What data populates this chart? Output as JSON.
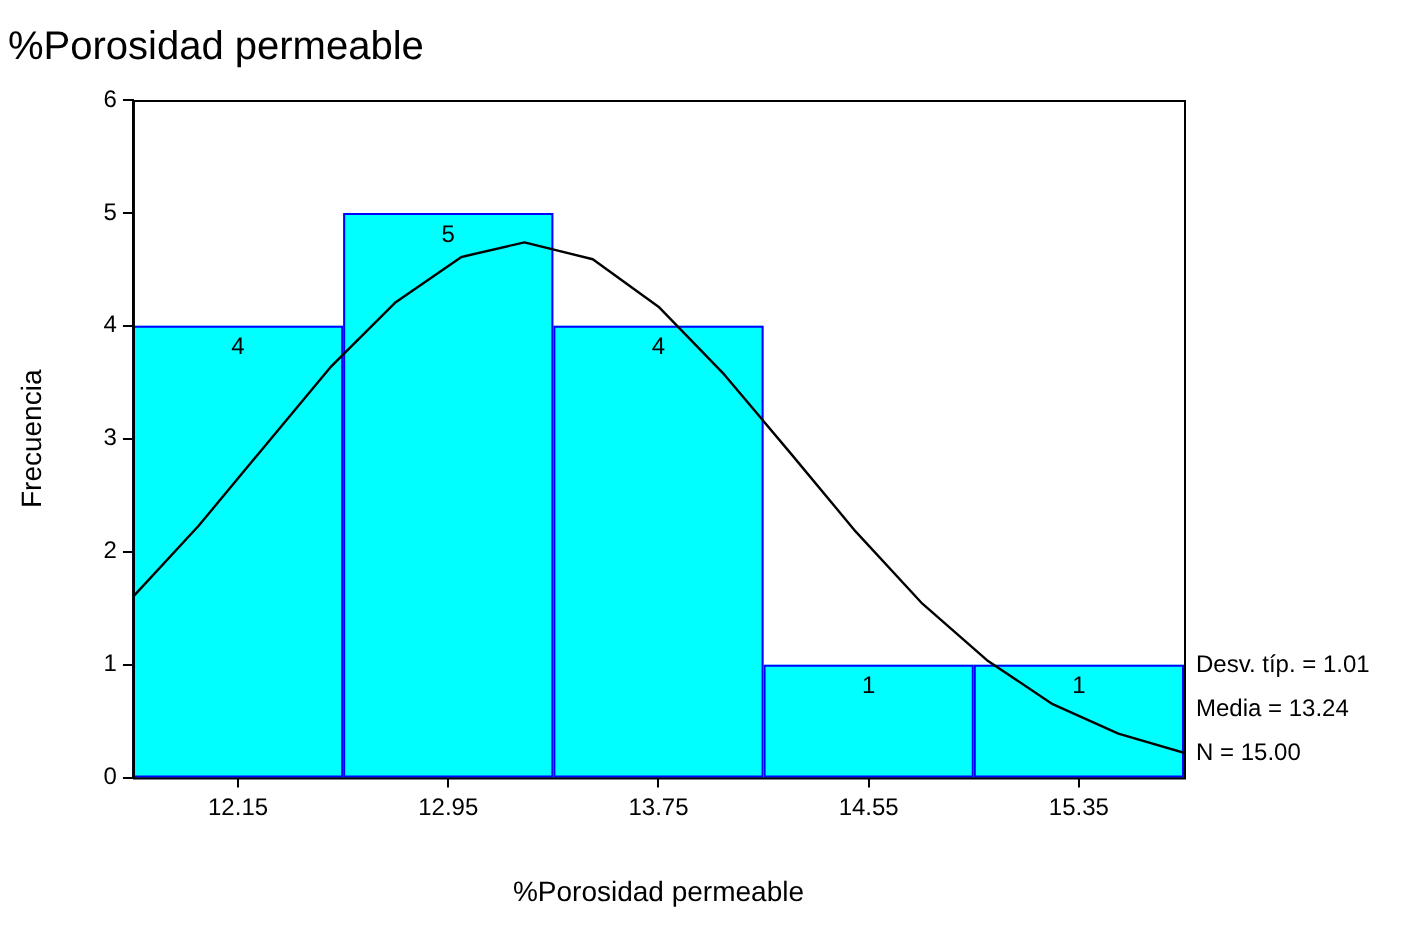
{
  "chart_data": {
    "type": "histogram",
    "title": "%Porosidad permeable",
    "xlabel": "%Porosidad permeable",
    "ylabel": "Frecuencia",
    "bins": [
      11.75,
      12.55,
      13.35,
      14.15,
      14.95,
      15.75
    ],
    "series": [
      {
        "type": "histogram",
        "color": "#00ffff",
        "values": [
          4,
          5,
          4,
          1,
          1
        ],
        "value_labels": [
          "4",
          "5",
          "4",
          "1",
          "1"
        ]
      },
      {
        "type": "line",
        "color": "#000000",
        "x": [
          11.75,
          12.0,
          12.25,
          12.5,
          12.75,
          13.0,
          13.24,
          13.5,
          13.75,
          14.0,
          14.25,
          14.5,
          14.75,
          15.0,
          15.25,
          15.5,
          15.75
        ],
        "values": [
          1.6,
          2.23,
          2.93,
          3.63,
          4.21,
          4.61,
          4.74,
          4.59,
          4.17,
          3.57,
          2.88,
          2.18,
          1.55,
          1.04,
          0.65,
          0.39,
          0.22
        ]
      }
    ],
    "xlim": [
      11.75,
      15.75
    ],
    "xticks": [
      12.15,
      12.95,
      13.75,
      14.55,
      15.35
    ],
    "ylim": [
      0,
      6
    ],
    "yticks": [
      0,
      1,
      2,
      3,
      4,
      5,
      6
    ],
    "grid": false,
    "legend": false,
    "marker": "none",
    "line_style": "solid",
    "annotations": [
      "Desv. típ. = 1.01",
      "Media = 13.24",
      "N = 15.00"
    ]
  }
}
